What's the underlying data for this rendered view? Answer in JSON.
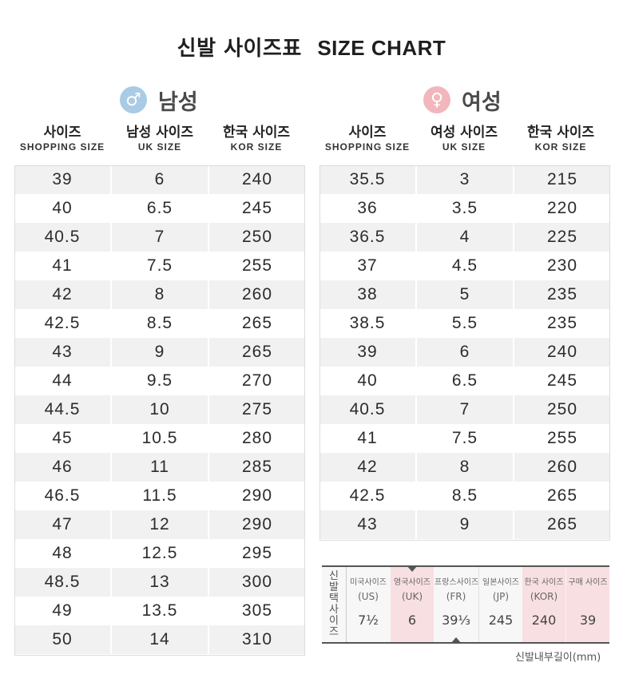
{
  "title": {
    "ko": "신발 사이즈표",
    "en": "SIZE CHART"
  },
  "men": {
    "label": "남성",
    "symbol": "♂",
    "color": "#a9cbe5",
    "headers": [
      {
        "ko": "사이즈",
        "en": "SHOPPING SIZE"
      },
      {
        "ko": "남성 사이즈",
        "en": "UK SIZE"
      },
      {
        "ko": "한국 사이즈",
        "en": "KOR SIZE"
      }
    ],
    "rows": [
      [
        "39",
        "6",
        "240"
      ],
      [
        "40",
        "6.5",
        "245"
      ],
      [
        "40.5",
        "7",
        "250"
      ],
      [
        "41",
        "7.5",
        "255"
      ],
      [
        "42",
        "8",
        "260"
      ],
      [
        "42.5",
        "8.5",
        "265"
      ],
      [
        "43",
        "9",
        "265"
      ],
      [
        "44",
        "9.5",
        "270"
      ],
      [
        "44.5",
        "10",
        "275"
      ],
      [
        "45",
        "10.5",
        "280"
      ],
      [
        "46",
        "11",
        "285"
      ],
      [
        "46.5",
        "11.5",
        "290"
      ],
      [
        "47",
        "12",
        "290"
      ],
      [
        "48",
        "12.5",
        "295"
      ],
      [
        "48.5",
        "13",
        "300"
      ],
      [
        "49",
        "13.5",
        "305"
      ],
      [
        "50",
        "14",
        "310"
      ]
    ]
  },
  "women": {
    "label": "여성",
    "symbol": "♀",
    "color": "#f2b6bd",
    "headers": [
      {
        "ko": "사이즈",
        "en": "SHOPPING SIZE"
      },
      {
        "ko": "여성 사이즈",
        "en": "UK SIZE"
      },
      {
        "ko": "한국 사이즈",
        "en": "KOR SIZE"
      }
    ],
    "rows": [
      [
        "35.5",
        "3",
        "215"
      ],
      [
        "36",
        "3.5",
        "220"
      ],
      [
        "36.5",
        "4",
        "225"
      ],
      [
        "37",
        "4.5",
        "230"
      ],
      [
        "38",
        "5",
        "235"
      ],
      [
        "38.5",
        "5.5",
        "235"
      ],
      [
        "39",
        "6",
        "240"
      ],
      [
        "40",
        "6.5",
        "245"
      ],
      [
        "40.5",
        "7",
        "250"
      ],
      [
        "41",
        "7.5",
        "255"
      ],
      [
        "42",
        "8",
        "260"
      ],
      [
        "42.5",
        "8.5",
        "265"
      ],
      [
        "43",
        "9",
        "265"
      ]
    ]
  },
  "legend": {
    "side_label": "신발택사이즈",
    "columns": [
      {
        "l1": "미국사이즈",
        "l2": "(US)",
        "value": "7½"
      },
      {
        "l1": "영국사이즈",
        "l2": "(UK)",
        "value": "6"
      },
      {
        "l1": "프랑스사이즈",
        "l2": "(FR)",
        "value": "39⅓"
      },
      {
        "l1": "일본사이즈",
        "l2": "(JP)",
        "value": "245"
      },
      {
        "l1": "한국 사이즈",
        "l2": "(KOR)",
        "value": "240"
      },
      {
        "l1": "구매 사이즈",
        "l2": "",
        "value": "39"
      }
    ],
    "note": "신발내부길이(mm)"
  }
}
